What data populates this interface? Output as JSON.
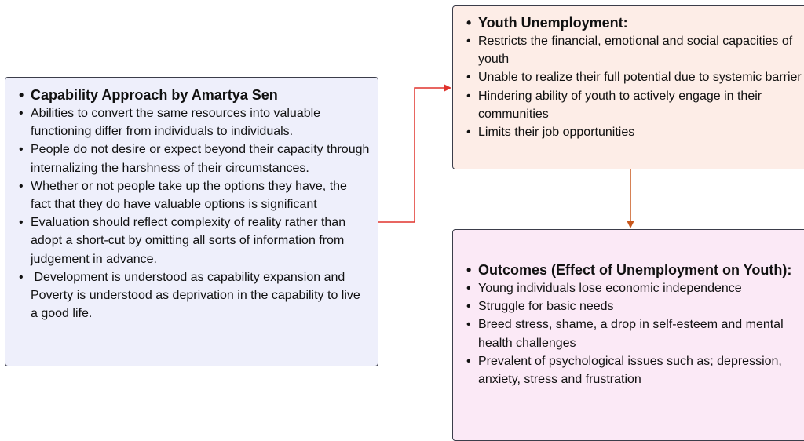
{
  "nodes": [
    {
      "title": "Capability Approach by Amartya Sen",
      "items": [
        "Abilities to convert the same resources into valuable functioning differ from individuals to individuals.",
        "People do not desire or expect beyond their capacity through internalizing the harshness of their circumstances.",
        "Whether or not people take up the options they have, the fact that they do have valuable options is significant",
        "Evaluation should reflect complexity of reality rather than adopt a short-cut by omitting all sorts of information from judgement in advance.",
        " Development is understood as capability expansion and Poverty is understood as deprivation in the capability to live a good life."
      ]
    },
    {
      "title": "Youth Unemployment:",
      "items": [
        "Restricts the financial, emotional and social capacities of youth",
        "Unable to realize their full potential due to systemic barrier",
        "Hindering ability of youth to actively engage in their communities",
        "Limits their job opportunities"
      ]
    },
    {
      "title": "Outcomes (Effect of Unemployment on Youth):",
      "items": [
        "Young individuals lose economic independence",
        "Struggle for basic needs",
        "Breed stress, shame, a drop in self-esteem and mental health challenges",
        "Prevalent of psychological issues such as; depression, anxiety, stress and frustration"
      ]
    }
  ]
}
